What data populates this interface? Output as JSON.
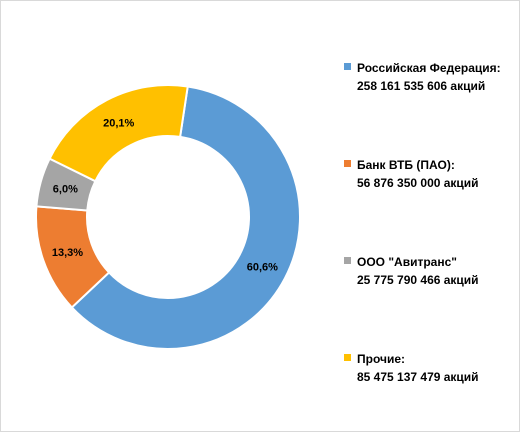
{
  "chart_data": {
    "type": "pie",
    "title": "",
    "slices": [
      {
        "label": "60,6%",
        "value": 60.6,
        "color": "#5B9BD5"
      },
      {
        "label": "13,3%",
        "value": 13.3,
        "color": "#ED7D31"
      },
      {
        "label": "6,0%",
        "value": 6.0,
        "color": "#A5A5A5"
      },
      {
        "label": "20,1%",
        "value": 20.1,
        "color": "#FFC000"
      }
    ],
    "legend": {
      "placement": "right",
      "items": [
        {
          "name": "Российская Федерация:",
          "detail": "258 161 535 606 акций",
          "color": "#5B9BD5"
        },
        {
          "name": "Банк ВТБ (ПАО):",
          "detail": "56 876 350 000 акций",
          "color": "#ED7D31"
        },
        {
          "name": "ООО \"Авитранс\"",
          "detail": "25 775 790 466 акций",
          "color": "#A5A5A5"
        },
        {
          "name": "Прочие:",
          "detail": "85 475 137 479 акций",
          "color": "#FFC000"
        }
      ]
    }
  }
}
